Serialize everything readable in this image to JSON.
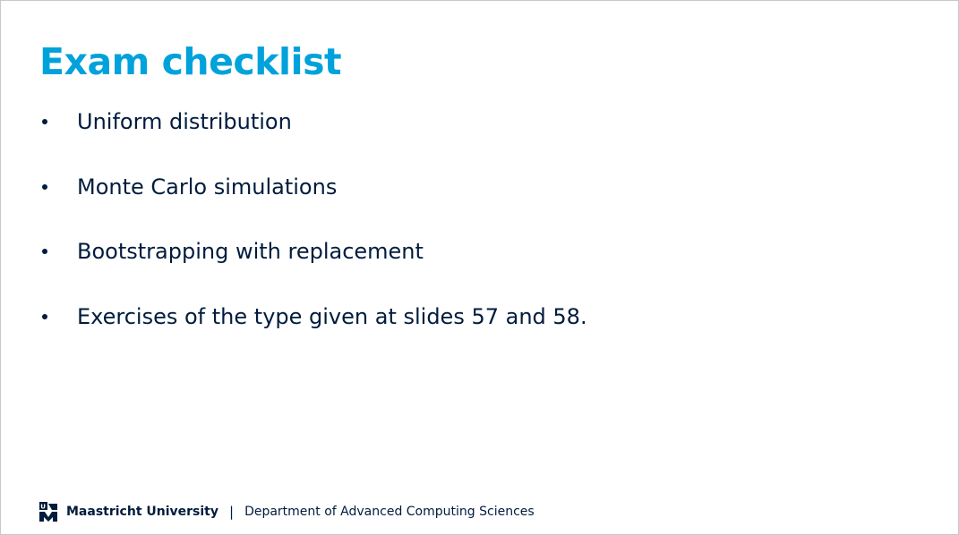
{
  "slide": {
    "title": "Exam checklist",
    "bullets": [
      "Uniform distribution",
      "Monte Carlo simulations",
      "Bootstrapping with replacement",
      "Exercises of the type given at slides 57 and 58."
    ]
  },
  "footer": {
    "logo_icon": "maastricht-university-logo-icon",
    "university": "Maastricht University",
    "separator": "|",
    "department": "Department of Advanced Computing Sciences"
  },
  "colors": {
    "title": "#00a2db",
    "text": "#001c3d"
  }
}
